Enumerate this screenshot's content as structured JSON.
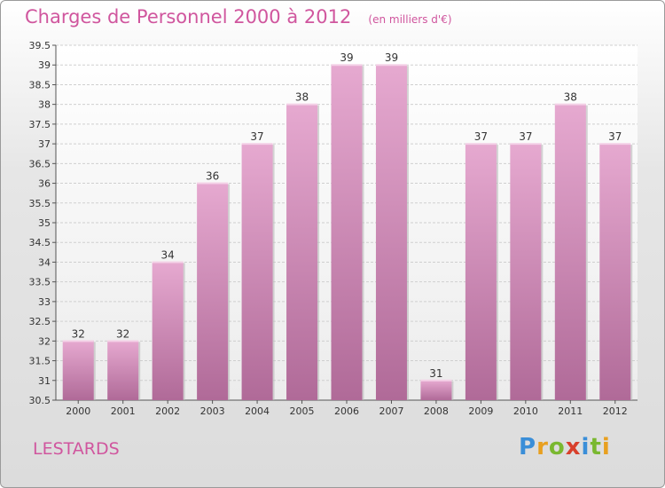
{
  "header": {
    "title": "Charges de Personnel 2000 à 2012",
    "subtitle": "(en milliers d'€)"
  },
  "footer": {
    "commune": "LESTARDS",
    "logo_text": "Proxiti"
  },
  "chart_data": {
    "type": "bar",
    "title": "Charges de Personnel 2000 à 2012",
    "subtitle": "(en milliers d'€)",
    "categories": [
      "2000",
      "2001",
      "2002",
      "2003",
      "2004",
      "2005",
      "2006",
      "2007",
      "2008",
      "2009",
      "2010",
      "2011",
      "2012"
    ],
    "values": [
      32,
      32,
      34,
      36,
      37,
      38,
      39,
      39,
      31,
      37,
      37,
      38,
      37
    ],
    "ylim": [
      30.5,
      39.5
    ],
    "yticks": [
      "30.5",
      "31",
      "31.5",
      "32",
      "32.5",
      "33",
      "33.5",
      "34",
      "34.5",
      "35",
      "35.5",
      "36",
      "36.5",
      "37",
      "37.5",
      "38",
      "38.5",
      "39",
      "39.5"
    ],
    "grid": true,
    "bar_color": "#d98fbd",
    "title_color": "#d0569e"
  }
}
